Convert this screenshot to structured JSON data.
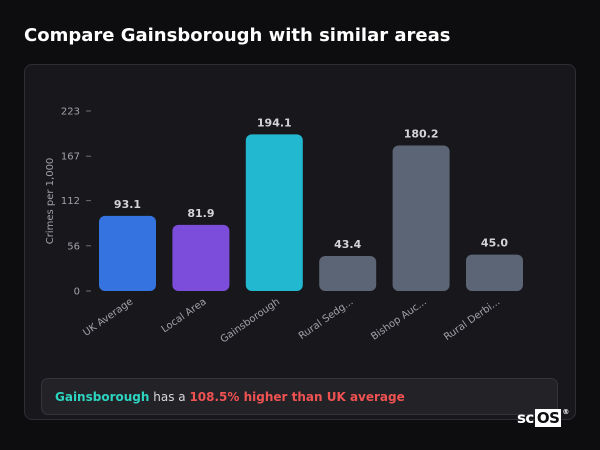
{
  "title": "Compare Gainsborough with similar areas",
  "chart_data": {
    "type": "bar",
    "ylabel": "Crimes per 1,000",
    "yticks": [
      0,
      56,
      112,
      167,
      223
    ],
    "ylim": [
      0,
      223
    ],
    "grid": false,
    "categories": [
      "UK Average",
      "Local Area",
      "Gainsborough",
      "Rural Sedg...",
      "Bishop Auc...",
      "Rural Derbi..."
    ],
    "values": [
      93.1,
      81.9,
      194.1,
      43.4,
      180.2,
      45.0
    ],
    "value_labels": [
      "93.1",
      "81.9",
      "194.1",
      "43.4",
      "180.2",
      "45.0"
    ],
    "colors": [
      "#3573e0",
      "#7c4ddb",
      "#21b8d0",
      "#5c6575",
      "#5c6575",
      "#5c6575"
    ]
  },
  "summary": {
    "area": "Gainsborough",
    "middle": " has a ",
    "delta": "108.5% higher than UK average"
  },
  "logo": {
    "prefix": "sc",
    "boxed": "OS",
    "mark": "®"
  }
}
